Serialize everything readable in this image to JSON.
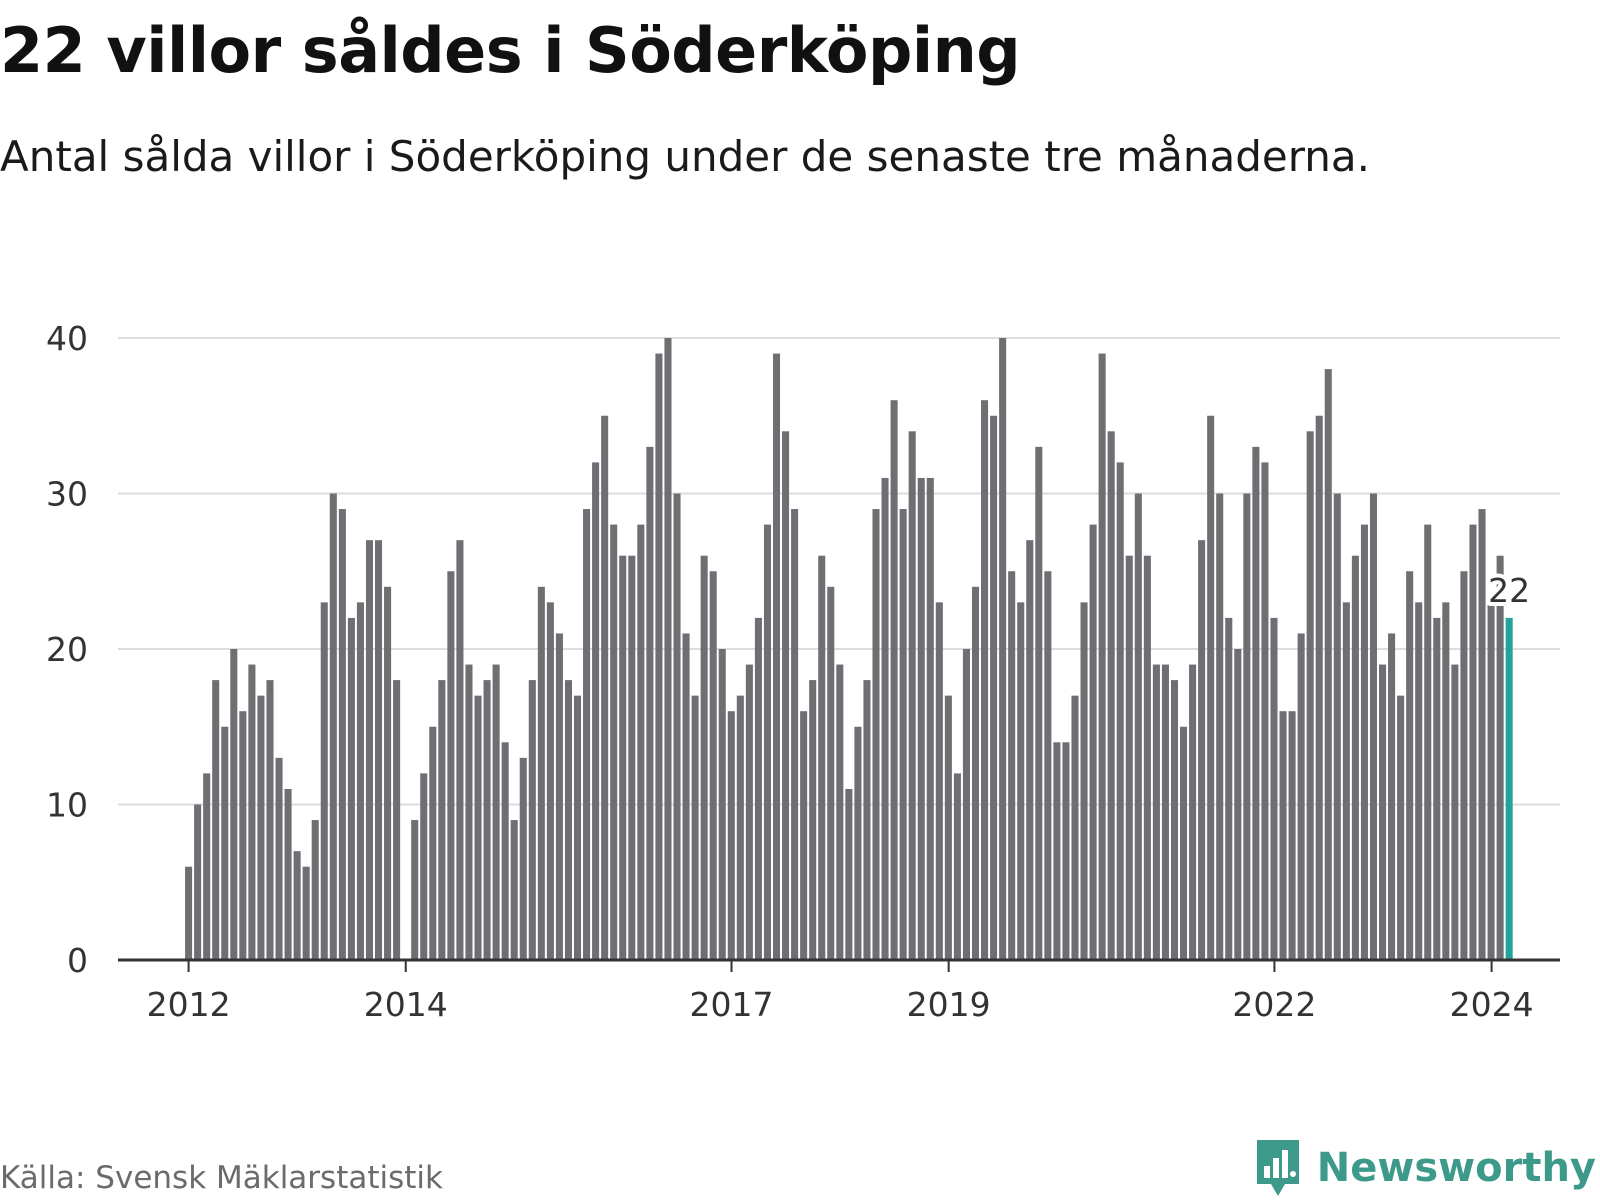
{
  "header": {
    "title": "22 villor såldes i Söderköping",
    "subtitle": "Antal sålda villor i Söderköping under de senaste tre månaderna."
  },
  "footer": {
    "source": "Källa: Svensk Mäklarstatistik",
    "brand": "Newsworthy"
  },
  "colors": {
    "bar": "#6e6e73",
    "highlight": "#22a39a",
    "grid": "#dddddd",
    "axis": "#333333",
    "brand": "#3d9a8a"
  },
  "chart_data": {
    "type": "bar",
    "title": "22 villor såldes i Söderköping",
    "xlabel": "",
    "ylabel": "",
    "ylim": [
      0,
      40
    ],
    "yticks": [
      0,
      10,
      20,
      30,
      40
    ],
    "grid": true,
    "x_range": [
      2011.35,
      2024.63
    ],
    "x_ticks": [
      {
        "label": "2012",
        "x": 2012.0
      },
      {
        "label": "2014",
        "x": 2014.0
      },
      {
        "label": "2017",
        "x": 2017.0
      },
      {
        "label": "2019",
        "x": 2019.0
      },
      {
        "label": "2022",
        "x": 2022.0
      },
      {
        "label": "2024",
        "x": 2024.0
      }
    ],
    "x_start": 2012.0,
    "x_step": 0.0833,
    "series": [
      {
        "name": "Antal sålda villor",
        "values": [
          6,
          10,
          12,
          18,
          15,
          20,
          16,
          19,
          17,
          18,
          13,
          11,
          7,
          6,
          9,
          23,
          30,
          29,
          22,
          23,
          27,
          27,
          24,
          18,
          null,
          9,
          12,
          15,
          18,
          25,
          27,
          19,
          17,
          18,
          19,
          14,
          9,
          13,
          18,
          24,
          23,
          21,
          18,
          17,
          29,
          32,
          35,
          28,
          26,
          26,
          28,
          33,
          39,
          40,
          30,
          21,
          17,
          26,
          25,
          20,
          16,
          17,
          19,
          22,
          28,
          39,
          34,
          29,
          16,
          18,
          26,
          24,
          19,
          11,
          15,
          18,
          29,
          31,
          36,
          29,
          34,
          31,
          31,
          23,
          17,
          12,
          20,
          24,
          36,
          35,
          40,
          25,
          23,
          27,
          33,
          25,
          14,
          14,
          17,
          23,
          28,
          39,
          34,
          32,
          26,
          30,
          26,
          19,
          19,
          18,
          15,
          19,
          27,
          35,
          30,
          22,
          20,
          30,
          33,
          32,
          22,
          16,
          16,
          21,
          34,
          35,
          38,
          30,
          23,
          26,
          28,
          30,
          19,
          21,
          17,
          25,
          23,
          28,
          22,
          23,
          19,
          25,
          28,
          29,
          23,
          26,
          22
        ]
      }
    ],
    "highlight": {
      "index": 146,
      "value": 22,
      "label": "22"
    }
  }
}
